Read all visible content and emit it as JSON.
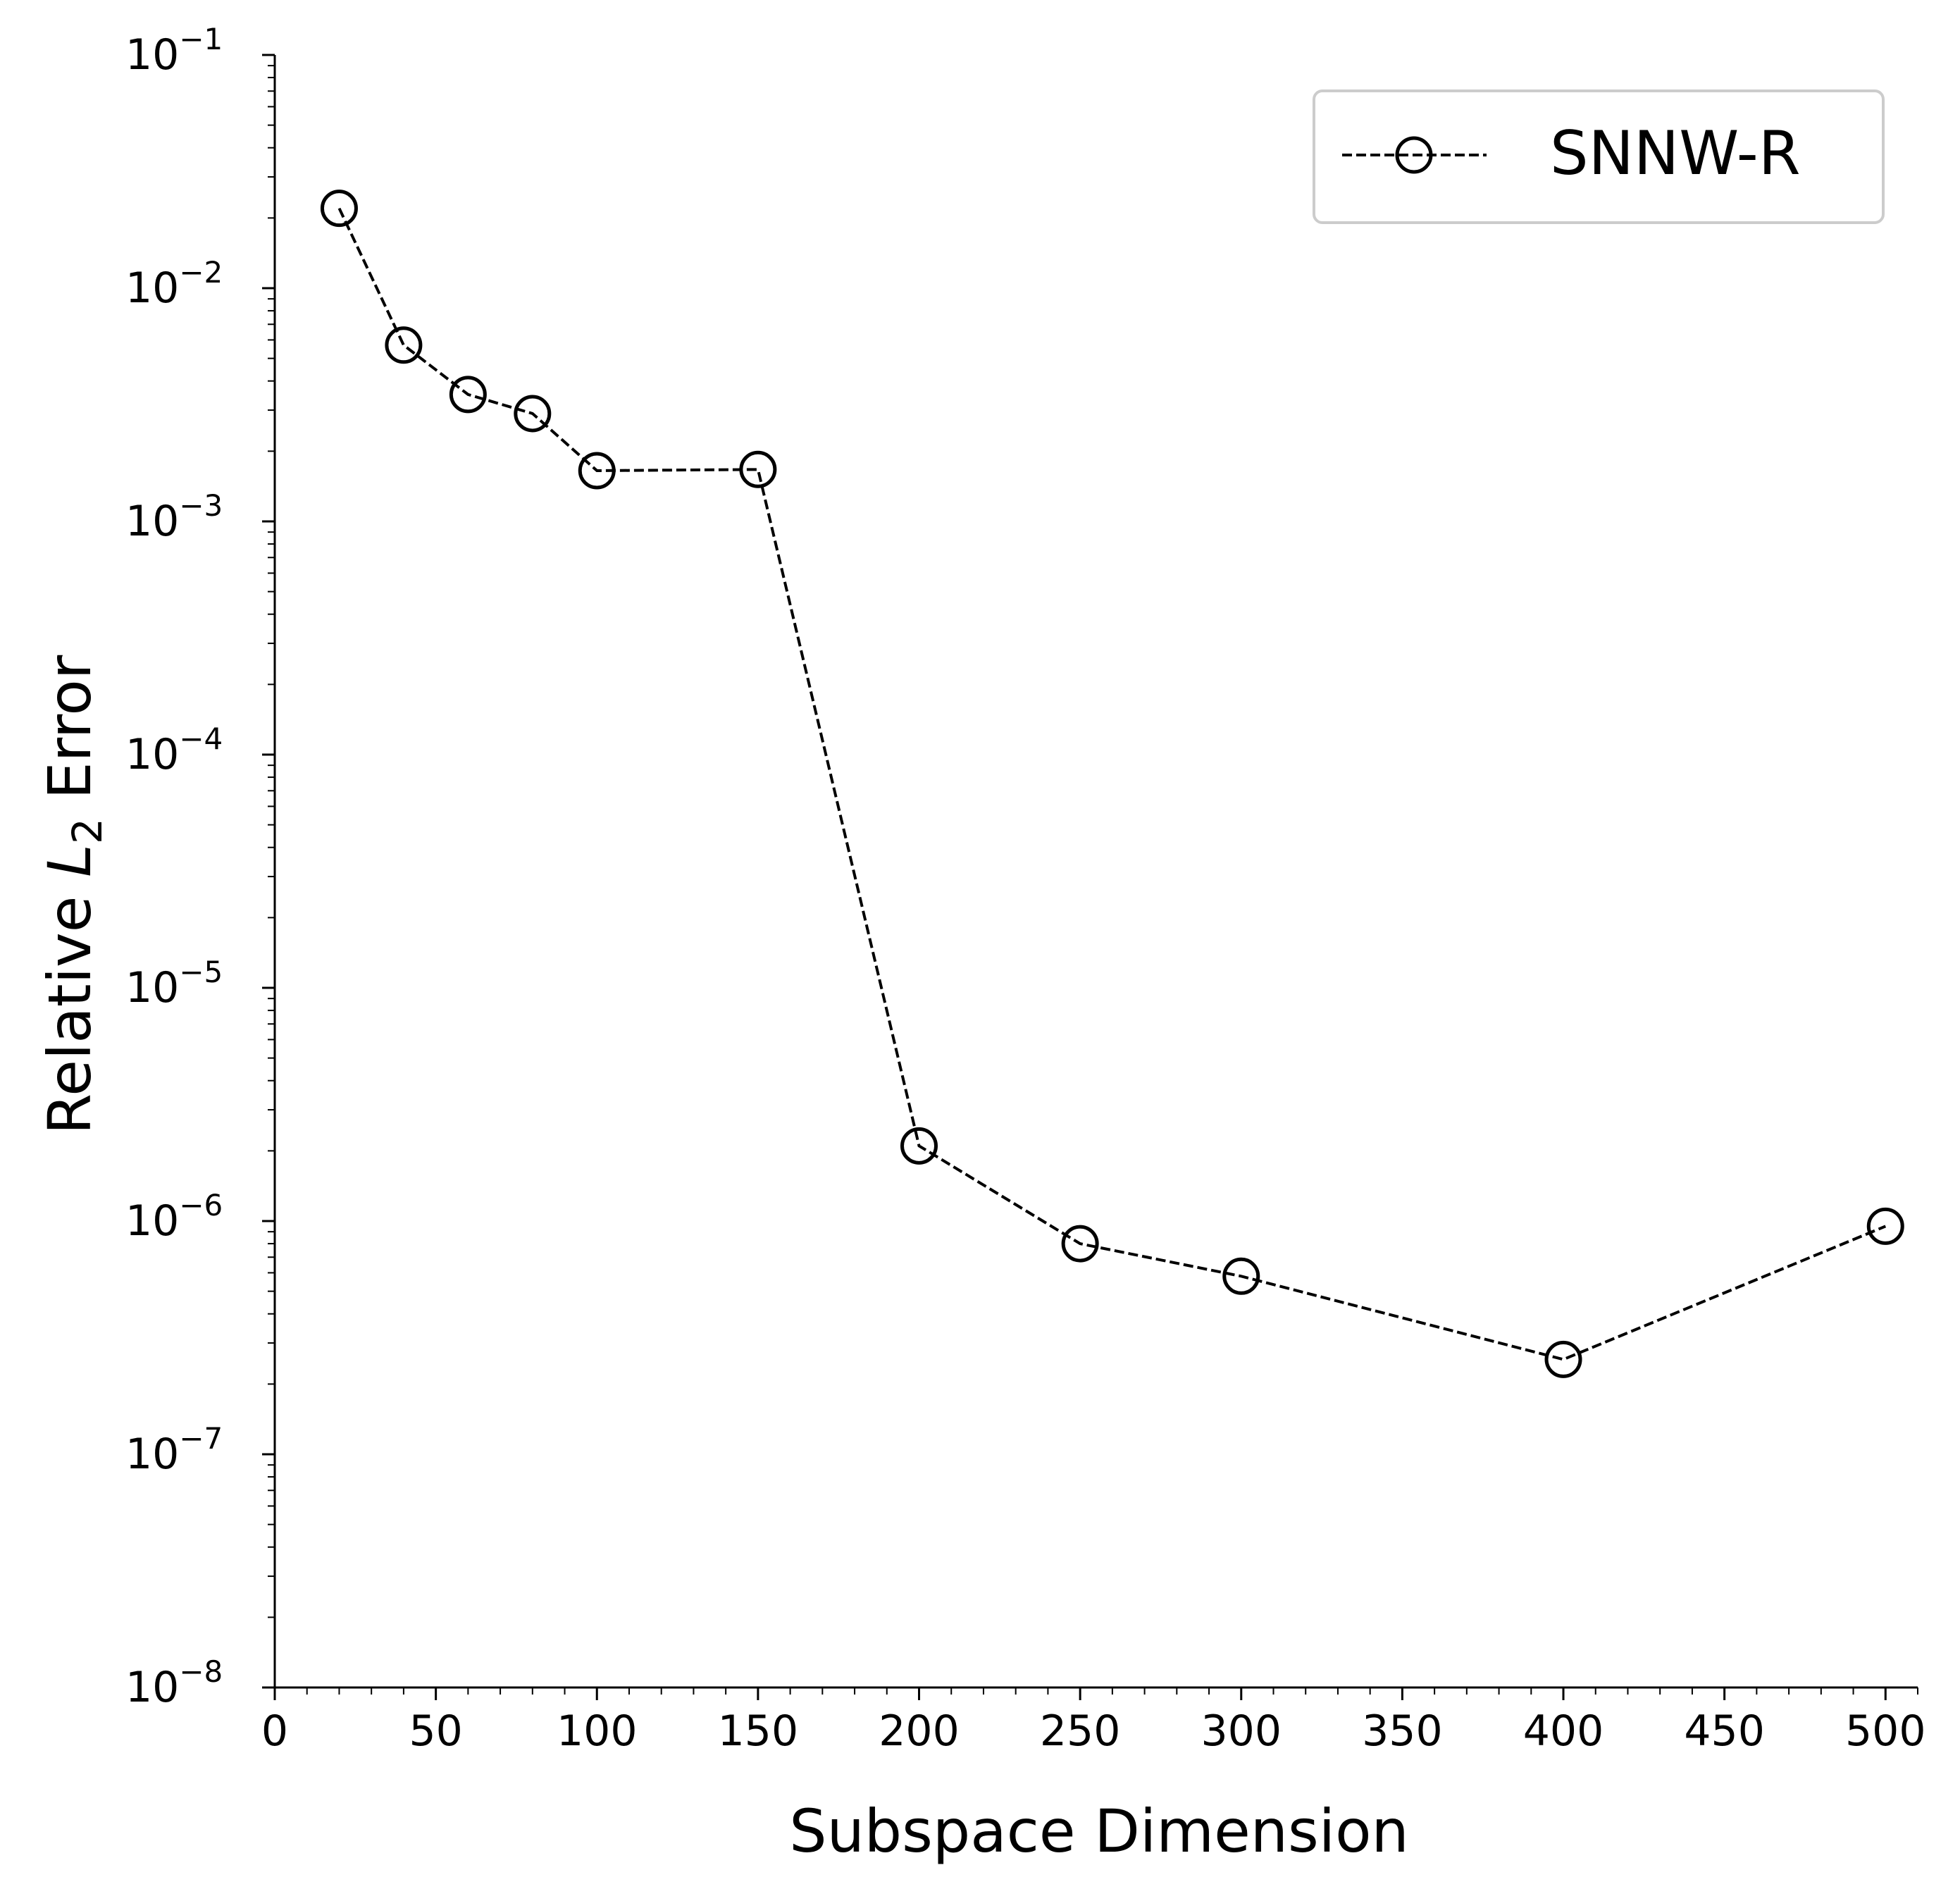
{
  "chart_data": {
    "type": "line",
    "xlabel": "Subspace Dimension",
    "ylabel_main": "Relative ",
    "ylabel_var": "L",
    "ylabel_sub": "2",
    "ylabel_tail": " Error",
    "yscale": "log",
    "xlim": [
      0,
      510
    ],
    "ylim": [
      1e-08,
      0.1
    ],
    "x_ticks": [
      0,
      50,
      100,
      150,
      200,
      250,
      300,
      350,
      400,
      450,
      500
    ],
    "x_tick_labels": [
      "0",
      "50",
      "100",
      "150",
      "200",
      "250",
      "300",
      "350",
      "400",
      "450",
      "500"
    ],
    "y_tick_exponents": [
      -8,
      -7,
      -6,
      -5,
      -4,
      -3,
      -2,
      -1
    ],
    "y_tick_labels": [
      {
        "base": "10",
        "exp": "−8"
      },
      {
        "base": "10",
        "exp": "−7"
      },
      {
        "base": "10",
        "exp": "−6"
      },
      {
        "base": "10",
        "exp": "−5"
      },
      {
        "base": "10",
        "exp": "−4"
      },
      {
        "base": "10",
        "exp": "−3"
      },
      {
        "base": "10",
        "exp": "−2"
      },
      {
        "base": "10",
        "exp": "−1"
      }
    ],
    "series": [
      {
        "name": "SNNW-R",
        "marker": "circle-open",
        "linestyle": "dashed",
        "color": "#000000",
        "x": [
          20,
          40,
          60,
          80,
          100,
          150,
          200,
          250,
          300,
          400,
          500
        ],
        "y": [
          0.022,
          0.0057,
          0.0035,
          0.0029,
          0.00165,
          0.00167,
          2.1e-06,
          8e-07,
          5.8e-07,
          2.55e-07,
          9.5e-07
        ]
      }
    ],
    "legend": {
      "position": "top-right",
      "label": "SNNW-R"
    }
  }
}
